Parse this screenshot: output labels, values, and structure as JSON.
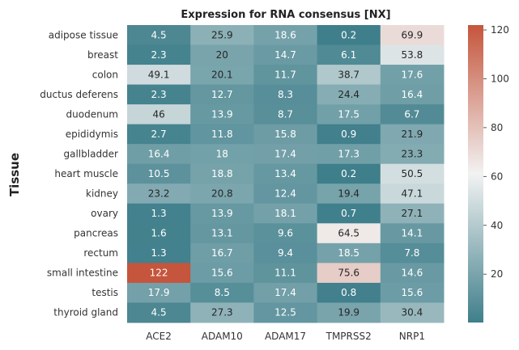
{
  "chart_data": {
    "type": "heatmap",
    "title": "Expression for RNA consensus [NX]",
    "ylabel": "Tissue",
    "xlabel": "",
    "columns": [
      "ACE2",
      "ADAM10",
      "ADAM17",
      "TMPRSS2",
      "NRP1"
    ],
    "rows": [
      "adipose tissue",
      "breast",
      "colon",
      "ductus deferens",
      "duodenum",
      "epididymis",
      "gallbladder",
      "heart muscle",
      "kidney",
      "ovary",
      "pancreas",
      "rectum",
      "small intestine",
      "testis",
      "thyroid gland"
    ],
    "values": [
      [
        4.5,
        25.9,
        18.6,
        0.2,
        69.9
      ],
      [
        2.3,
        20,
        14.7,
        6.1,
        53.8
      ],
      [
        49.1,
        20.1,
        11.7,
        38.7,
        17.6
      ],
      [
        2.3,
        12.7,
        8.3,
        24.4,
        16.4
      ],
      [
        46,
        13.9,
        8.7,
        17.5,
        6.7
      ],
      [
        2.7,
        11.8,
        15.8,
        0.9,
        21.9
      ],
      [
        16.4,
        18,
        17.4,
        17.3,
        23.3
      ],
      [
        10.5,
        18.8,
        13.4,
        0.2,
        50.5
      ],
      [
        23.2,
        20.8,
        12.4,
        19.4,
        47.1
      ],
      [
        1.3,
        13.9,
        18.1,
        0.7,
        27.1
      ],
      [
        1.6,
        13.1,
        9.6,
        64.5,
        14.1
      ],
      [
        1.3,
        16.7,
        9.4,
        18.5,
        7.8
      ],
      [
        122,
        15.6,
        11.1,
        75.6,
        14.6
      ],
      [
        17.9,
        8.5,
        17.4,
        0.8,
        15.6
      ],
      [
        4.5,
        27.3,
        12.5,
        19.9,
        30.4
      ]
    ],
    "colorbar": {
      "range": [
        0.2,
        122
      ],
      "ticks": [
        20,
        40,
        60,
        80,
        100,
        120
      ],
      "colors": [
        "#3f7f8b",
        "#f2f2f2",
        "#c5553c"
      ]
    }
  }
}
